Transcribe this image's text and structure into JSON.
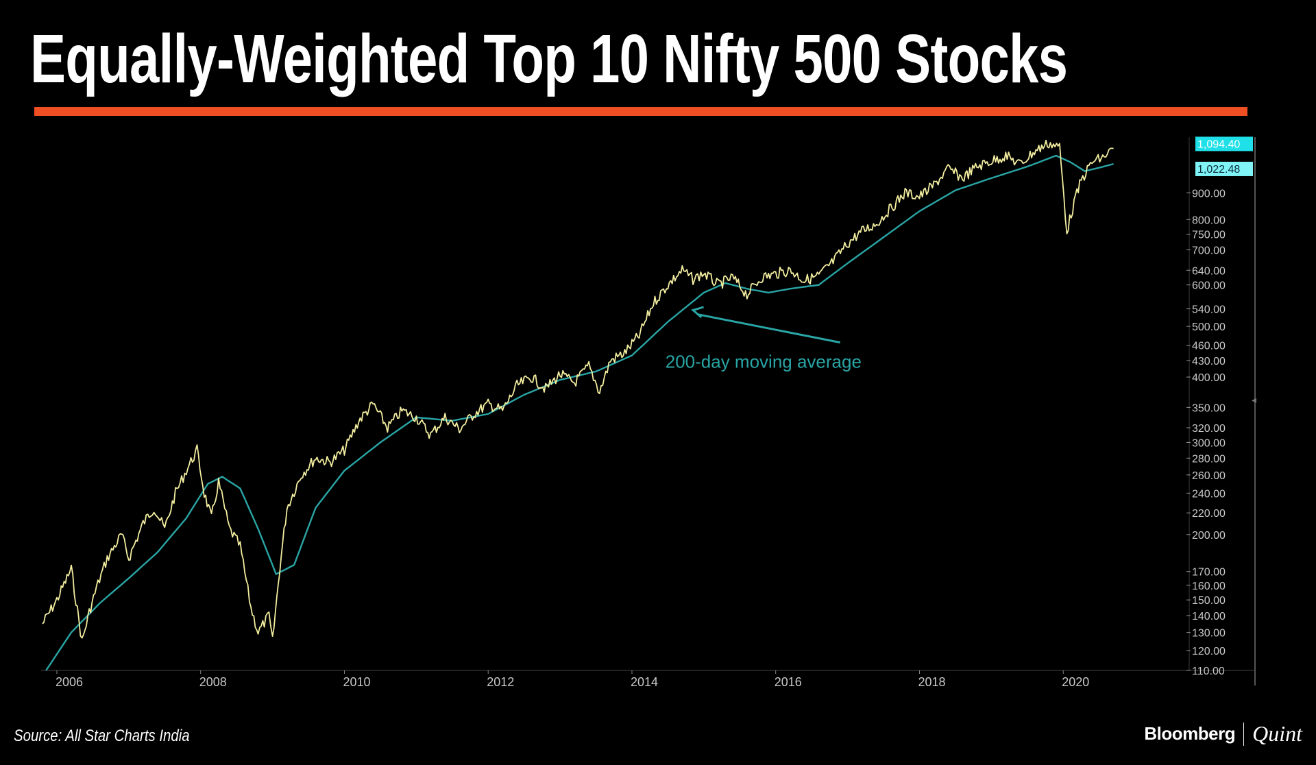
{
  "title": "Equally-Weighted Top 10 Nifty 500 Stocks",
  "source": "Source: All Star Charts India",
  "brand": {
    "primary": "Bloomberg",
    "secondary": "Quint"
  },
  "colors": {
    "accent": "#f04e23",
    "price_line": "#f3eea0",
    "ma_line": "#2aa5a5",
    "tag_bg": "#1fe0e8",
    "background": "#000000"
  },
  "chart_data": {
    "type": "line",
    "yscale": "log",
    "ylim": [
      110,
      1150
    ],
    "xlim": [
      2005.8,
      2021.8
    ],
    "x_ticks": [
      {
        "value": 2006,
        "label": "2006"
      },
      {
        "value": 2008,
        "label": "2008"
      },
      {
        "value": 2010,
        "label": "2010"
      },
      {
        "value": 2012,
        "label": "2012"
      },
      {
        "value": 2014,
        "label": "2014"
      },
      {
        "value": 2016,
        "label": "2016"
      },
      {
        "value": 2018,
        "label": "2018"
      },
      {
        "value": 2020,
        "label": "2020"
      }
    ],
    "y_ticks": [
      {
        "value": 900,
        "label": "900.00"
      },
      {
        "value": 800,
        "label": "800.00"
      },
      {
        "value": 750,
        "label": "750.00"
      },
      {
        "value": 700,
        "label": "700.00"
      },
      {
        "value": 640,
        "label": "640.00"
      },
      {
        "value": 600,
        "label": "600.00"
      },
      {
        "value": 540,
        "label": "540.00"
      },
      {
        "value": 500,
        "label": "500.00"
      },
      {
        "value": 460,
        "label": "460.00"
      },
      {
        "value": 430,
        "label": "430.00"
      },
      {
        "value": 400,
        "label": "400.00"
      },
      {
        "value": 350,
        "label": "350.00"
      },
      {
        "value": 320,
        "label": "320.00"
      },
      {
        "value": 300,
        "label": "300.00"
      },
      {
        "value": 280,
        "label": "280.00"
      },
      {
        "value": 260,
        "label": "260.00"
      },
      {
        "value": 240,
        "label": "240.00"
      },
      {
        "value": 220,
        "label": "220.00"
      },
      {
        "value": 200,
        "label": "200.00"
      },
      {
        "value": 170,
        "label": "170.00"
      },
      {
        "value": 160,
        "label": "160.00"
      },
      {
        "value": 150,
        "label": "150.00"
      },
      {
        "value": 140,
        "label": "140.00"
      },
      {
        "value": 130,
        "label": "130.00"
      },
      {
        "value": 120,
        "label": "120.00"
      },
      {
        "value": 110,
        "label": "110.00"
      }
    ],
    "price_tags": [
      {
        "value": 1094.4,
        "label": "1,094.40"
      },
      {
        "value": 1022.48,
        "label": "1,022.48"
      }
    ],
    "series": [
      {
        "name": "Equally-Weighted Top 10 Nifty 500 Stocks",
        "x": [
          2005.8,
          2006.0,
          2006.2,
          2006.35,
          2006.45,
          2006.55,
          2006.7,
          2006.9,
          2007.0,
          2007.2,
          2007.35,
          2007.5,
          2007.65,
          2007.8,
          2007.95,
          2008.05,
          2008.15,
          2008.25,
          2008.4,
          2008.55,
          2008.7,
          2008.8,
          2008.95,
          2009.0,
          2009.1,
          2009.2,
          2009.4,
          2009.6,
          2009.8,
          2010.0,
          2010.2,
          2010.4,
          2010.6,
          2010.8,
          2011.0,
          2011.2,
          2011.4,
          2011.6,
          2011.8,
          2012.0,
          2012.2,
          2012.4,
          2012.6,
          2012.8,
          2013.0,
          2013.2,
          2013.4,
          2013.55,
          2013.7,
          2013.9,
          2014.1,
          2014.3,
          2014.5,
          2014.7,
          2014.85,
          2015.0,
          2015.2,
          2015.4,
          2015.6,
          2015.8,
          2016.0,
          2016.2,
          2016.4,
          2016.6,
          2016.8,
          2017.0,
          2017.2,
          2017.4,
          2017.6,
          2017.8,
          2018.0,
          2018.2,
          2018.4,
          2018.6,
          2018.8,
          2019.0,
          2019.2,
          2019.4,
          2019.6,
          2019.8,
          2019.95,
          2020.05,
          2020.15,
          2020.25,
          2020.4,
          2020.55,
          2020.7
        ],
        "values": [
          135,
          150,
          172,
          125,
          142,
          158,
          180,
          200,
          180,
          210,
          225,
          205,
          240,
          265,
          290,
          240,
          215,
          252,
          205,
          190,
          145,
          130,
          140,
          125,
          172,
          225,
          260,
          280,
          275,
          290,
          330,
          355,
          320,
          345,
          335,
          310,
          335,
          318,
          340,
          355,
          345,
          385,
          400,
          380,
          405,
          390,
          420,
          375,
          430,
          445,
          480,
          555,
          600,
          640,
          615,
          632,
          600,
          620,
          575,
          620,
          630,
          640,
          612,
          625,
          665,
          720,
          760,
          785,
          840,
          900,
          885,
          930,
          1000,
          960,
          1010,
          1035,
          1060,
          1020,
          1080,
          1120,
          1100,
          760,
          860,
          950,
          1030,
          1050,
          1094
        ]
      },
      {
        "name": "200-day moving average",
        "x": [
          2005.85,
          2006.2,
          2006.6,
          2007.0,
          2007.4,
          2007.8,
          2008.1,
          2008.3,
          2008.55,
          2008.8,
          2009.05,
          2009.3,
          2009.6,
          2010.0,
          2010.5,
          2011.0,
          2011.5,
          2012.0,
          2012.5,
          2013.0,
          2013.5,
          2014.0,
          2014.5,
          2015.0,
          2015.3,
          2015.6,
          2015.9,
          2016.2,
          2016.6,
          2017.0,
          2017.5,
          2018.0,
          2018.5,
          2019.0,
          2019.5,
          2019.9,
          2020.1,
          2020.3,
          2020.5,
          2020.7
        ],
        "values": [
          110,
          130,
          148,
          165,
          185,
          215,
          250,
          258,
          245,
          205,
          168,
          175,
          225,
          265,
          300,
          335,
          330,
          340,
          370,
          395,
          410,
          440,
          510,
          580,
          605,
          590,
          580,
          590,
          600,
          660,
          740,
          830,
          910,
          960,
          1010,
          1060,
          1030,
          990,
          1005,
          1022
        ]
      }
    ],
    "annotations": [
      {
        "text": "200-day moving average",
        "x": 2015.8,
        "y": 428,
        "arrow_to": {
          "x": 2014.85,
          "y": 537
        }
      }
    ]
  }
}
